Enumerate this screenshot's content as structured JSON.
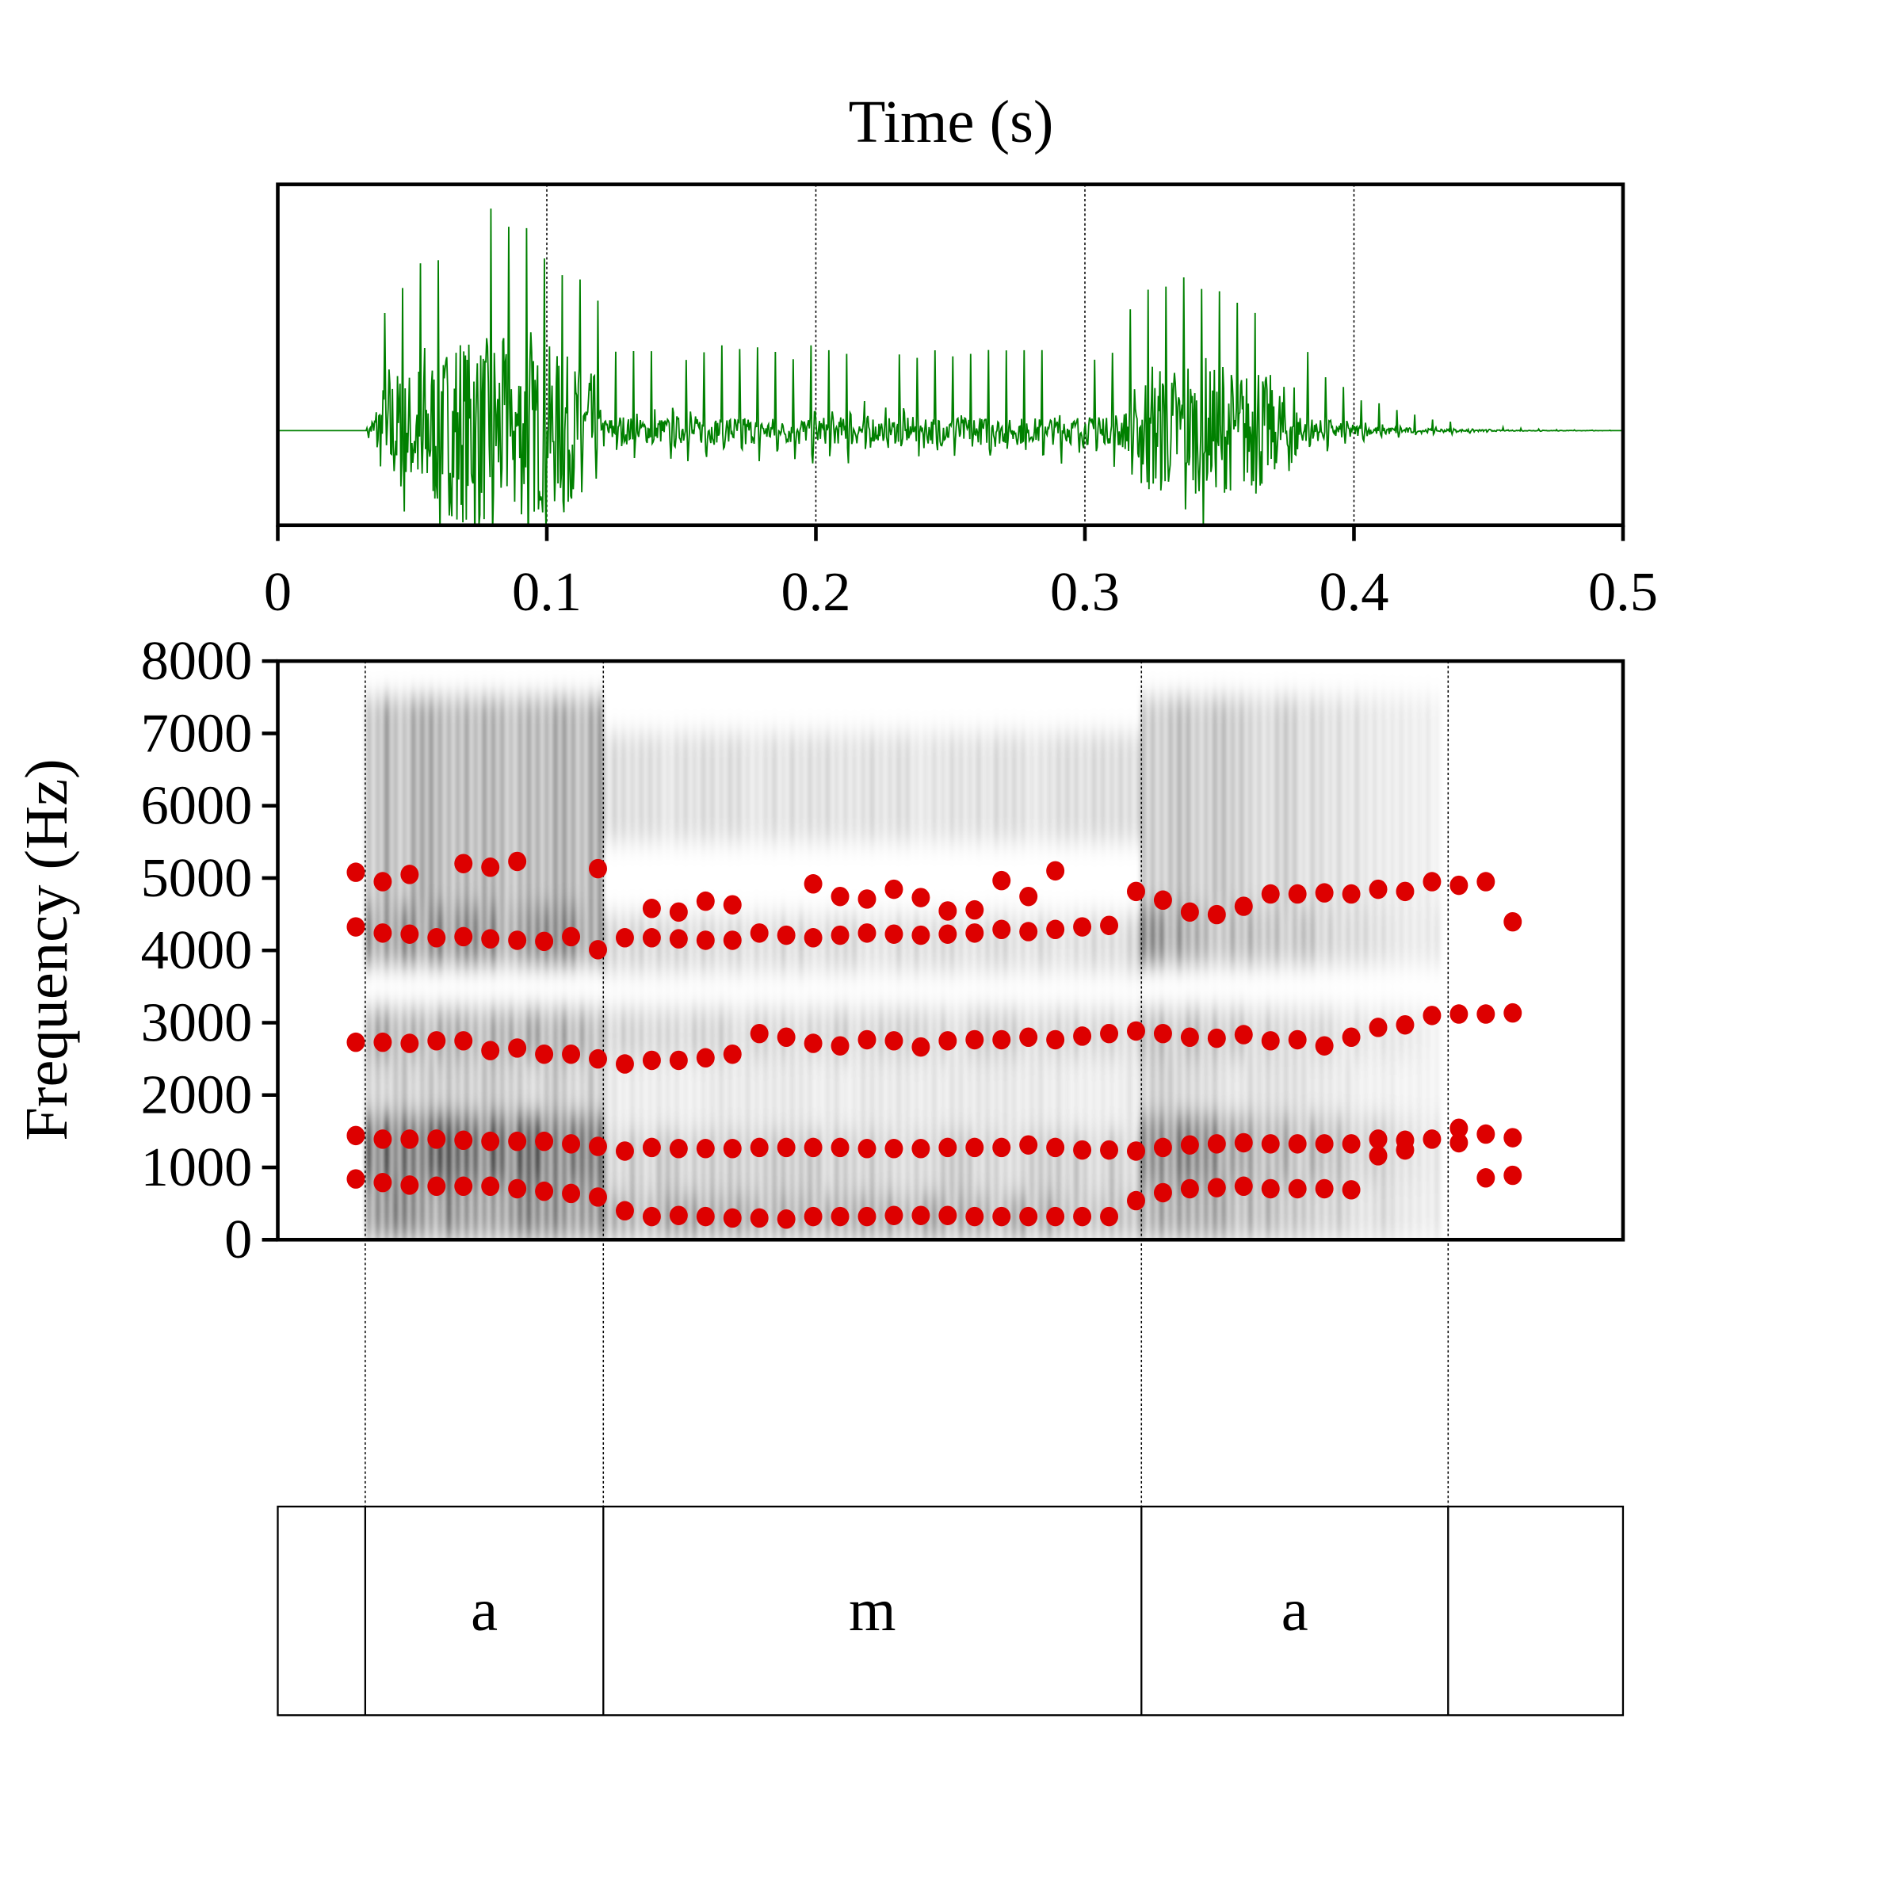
{
  "chart_data": [
    {
      "type": "line",
      "name": "waveform",
      "title": "Time (s)",
      "xlabel": "Time (s)",
      "xlim": [
        0,
        0.5
      ],
      "xticks": [
        "0",
        "0.1",
        "0.2",
        "0.3",
        "0.4",
        "0.5"
      ],
      "color": "#008000"
    },
    {
      "type": "scatter",
      "name": "spectrogram-formants",
      "ylabel": "Frequency (Hz)",
      "xlim": [
        0,
        0.5
      ],
      "ylim": [
        0,
        8000
      ],
      "yticks": [
        "0",
        "1000",
        "2000",
        "3000",
        "4000",
        "5000",
        "6000",
        "7000",
        "8000"
      ],
      "marker_color": "#dd0000",
      "series": [
        {
          "name": "F1",
          "points": [
            [
              0.029,
              840
            ],
            [
              0.039,
              790
            ],
            [
              0.049,
              755
            ],
            [
              0.059,
              740
            ],
            [
              0.069,
              740
            ],
            [
              0.079,
              740
            ],
            [
              0.089,
              705
            ],
            [
              0.099,
              670
            ],
            [
              0.109,
              640
            ],
            [
              0.119,
              590
            ],
            [
              0.129,
              400
            ],
            [
              0.139,
              320
            ],
            [
              0.149,
              335
            ],
            [
              0.159,
              320
            ],
            [
              0.169,
              300
            ],
            [
              0.179,
              300
            ],
            [
              0.189,
              285
            ],
            [
              0.199,
              320
            ],
            [
              0.209,
              320
            ],
            [
              0.219,
              320
            ],
            [
              0.229,
              335
            ],
            [
              0.239,
              335
            ],
            [
              0.249,
              335
            ],
            [
              0.259,
              320
            ],
            [
              0.269,
              320
            ],
            [
              0.279,
              320
            ],
            [
              0.289,
              320
            ],
            [
              0.299,
              320
            ],
            [
              0.309,
              320
            ],
            [
              0.319,
              540
            ],
            [
              0.329,
              650
            ],
            [
              0.339,
              705
            ],
            [
              0.349,
              720
            ],
            [
              0.359,
              740
            ],
            [
              0.369,
              705
            ],
            [
              0.379,
              705
            ],
            [
              0.389,
              705
            ],
            [
              0.399,
              690
            ],
            [
              0.449,
              855
            ],
            [
              0.459,
              890
            ]
          ]
        },
        {
          "name": "F2",
          "points": [
            [
              0.029,
              1440
            ],
            [
              0.039,
              1390
            ],
            [
              0.049,
              1390
            ],
            [
              0.059,
              1390
            ],
            [
              0.069,
              1375
            ],
            [
              0.079,
              1360
            ],
            [
              0.089,
              1360
            ],
            [
              0.099,
              1360
            ],
            [
              0.109,
              1325
            ],
            [
              0.119,
              1290
            ],
            [
              0.129,
              1225
            ],
            [
              0.139,
              1275
            ],
            [
              0.149,
              1260
            ],
            [
              0.159,
              1260
            ],
            [
              0.169,
              1260
            ],
            [
              0.179,
              1275
            ],
            [
              0.189,
              1275
            ],
            [
              0.199,
              1275
            ],
            [
              0.209,
              1275
            ],
            [
              0.219,
              1260
            ],
            [
              0.229,
              1260
            ],
            [
              0.239,
              1260
            ],
            [
              0.249,
              1275
            ],
            [
              0.259,
              1275
            ],
            [
              0.269,
              1275
            ],
            [
              0.279,
              1310
            ],
            [
              0.289,
              1275
            ],
            [
              0.299,
              1240
            ],
            [
              0.309,
              1240
            ],
            [
              0.319,
              1225
            ],
            [
              0.329,
              1275
            ],
            [
              0.339,
              1310
            ],
            [
              0.349,
              1325
            ],
            [
              0.359,
              1340
            ],
            [
              0.369,
              1325
            ],
            [
              0.379,
              1325
            ],
            [
              0.389,
              1325
            ],
            [
              0.399,
              1325
            ],
            [
              0.409,
              1390
            ],
            [
              0.409,
              1160
            ],
            [
              0.419,
              1375
            ],
            [
              0.419,
              1240
            ],
            [
              0.429,
              1390
            ],
            [
              0.439,
              1540
            ],
            [
              0.439,
              1340
            ],
            [
              0.449,
              1460
            ],
            [
              0.459,
              1410
            ]
          ]
        },
        {
          "name": "F3",
          "points": [
            [
              0.029,
              2730
            ],
            [
              0.039,
              2730
            ],
            [
              0.049,
              2715
            ],
            [
              0.059,
              2750
            ],
            [
              0.069,
              2750
            ],
            [
              0.079,
              2615
            ],
            [
              0.089,
              2650
            ],
            [
              0.099,
              2565
            ],
            [
              0.109,
              2565
            ],
            [
              0.119,
              2500
            ],
            [
              0.129,
              2430
            ],
            [
              0.139,
              2480
            ],
            [
              0.149,
              2480
            ],
            [
              0.159,
              2515
            ],
            [
              0.169,
              2565
            ],
            [
              0.179,
              2850
            ],
            [
              0.189,
              2800
            ],
            [
              0.199,
              2715
            ],
            [
              0.209,
              2680
            ],
            [
              0.219,
              2765
            ],
            [
              0.229,
              2750
            ],
            [
              0.239,
              2665
            ],
            [
              0.249,
              2750
            ],
            [
              0.259,
              2765
            ],
            [
              0.269,
              2765
            ],
            [
              0.279,
              2800
            ],
            [
              0.289,
              2765
            ],
            [
              0.299,
              2815
            ],
            [
              0.309,
              2850
            ],
            [
              0.319,
              2885
            ],
            [
              0.329,
              2850
            ],
            [
              0.339,
              2800
            ],
            [
              0.349,
              2785
            ],
            [
              0.359,
              2835
            ],
            [
              0.369,
              2750
            ],
            [
              0.379,
              2765
            ],
            [
              0.389,
              2680
            ],
            [
              0.399,
              2800
            ],
            [
              0.409,
              2935
            ],
            [
              0.419,
              2970
            ],
            [
              0.429,
              3100
            ],
            [
              0.439,
              3120
            ],
            [
              0.449,
              3120
            ],
            [
              0.459,
              3135
            ]
          ]
        },
        {
          "name": "F4",
          "points": [
            [
              0.029,
              4325
            ],
            [
              0.039,
              4240
            ],
            [
              0.049,
              4225
            ],
            [
              0.059,
              4175
            ],
            [
              0.069,
              4190
            ],
            [
              0.079,
              4160
            ],
            [
              0.089,
              4140
            ],
            [
              0.099,
              4125
            ],
            [
              0.109,
              4190
            ],
            [
              0.119,
              4010
            ],
            [
              0.129,
              4175
            ],
            [
              0.139,
              4175
            ],
            [
              0.149,
              4160
            ],
            [
              0.159,
              4140
            ],
            [
              0.169,
              4140
            ],
            [
              0.179,
              4240
            ],
            [
              0.189,
              4210
            ],
            [
              0.199,
              4175
            ],
            [
              0.209,
              4210
            ],
            [
              0.219,
              4240
            ],
            [
              0.229,
              4225
            ],
            [
              0.239,
              4210
            ],
            [
              0.249,
              4225
            ],
            [
              0.259,
              4240
            ],
            [
              0.269,
              4290
            ],
            [
              0.279,
              4260
            ],
            [
              0.289,
              4290
            ],
            [
              0.299,
              4325
            ],
            [
              0.309,
              4345
            ]
          ]
        },
        {
          "name": "F5",
          "points": [
            [
              0.029,
              5080
            ],
            [
              0.039,
              4950
            ],
            [
              0.049,
              5050
            ],
            [
              0.069,
              5200
            ],
            [
              0.079,
              5150
            ],
            [
              0.089,
              5230
            ],
            [
              0.119,
              5130
            ],
            [
              0.139,
              4580
            ],
            [
              0.149,
              4530
            ],
            [
              0.159,
              4680
            ],
            [
              0.169,
              4630
            ],
            [
              0.199,
              4920
            ],
            [
              0.209,
              4745
            ],
            [
              0.219,
              4710
            ],
            [
              0.229,
              4845
            ],
            [
              0.239,
              4730
            ],
            [
              0.249,
              4545
            ],
            [
              0.259,
              4560
            ],
            [
              0.269,
              4965
            ],
            [
              0.279,
              4745
            ],
            [
              0.289,
              5100
            ],
            [
              0.319,
              4815
            ],
            [
              0.329,
              4695
            ],
            [
              0.339,
              4530
            ],
            [
              0.349,
              4495
            ],
            [
              0.359,
              4610
            ],
            [
              0.369,
              4780
            ],
            [
              0.379,
              4780
            ],
            [
              0.389,
              4795
            ],
            [
              0.399,
              4780
            ],
            [
              0.409,
              4845
            ],
            [
              0.419,
              4815
            ],
            [
              0.429,
              4950
            ],
            [
              0.439,
              4900
            ],
            [
              0.449,
              4950
            ],
            [
              0.459,
              4395
            ]
          ]
        }
      ]
    }
  ],
  "textgrid": {
    "boundaries": [
      0.0325,
      0.121,
      0.321,
      0.435
    ],
    "intervals": [
      {
        "label": "",
        "start": 0,
        "end": 0.0325
      },
      {
        "label": "a",
        "start": 0.0325,
        "end": 0.121
      },
      {
        "label": "m",
        "start": 0.121,
        "end": 0.321
      },
      {
        "label": "a",
        "start": 0.321,
        "end": 0.435
      },
      {
        "label": "",
        "start": 0.435,
        "end": 0.5
      }
    ]
  }
}
